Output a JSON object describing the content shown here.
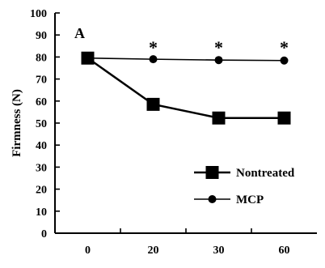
{
  "chart_data": {
    "type": "line",
    "panel_label": "A",
    "xlabel": "",
    "ylabel": "Firmness (N)",
    "categories": [
      "0",
      "20",
      "30",
      "60"
    ],
    "ylim": [
      0,
      100
    ],
    "yticks": [
      0,
      10,
      20,
      30,
      40,
      50,
      60,
      70,
      80,
      90,
      100
    ],
    "grid": false,
    "legend_position": "bottom-right",
    "series": [
      {
        "name": "Nontreated",
        "marker": "square",
        "values": [
          79.5,
          58.5,
          52.3,
          52.3
        ]
      },
      {
        "name": "MCP",
        "marker": "circle",
        "values": [
          79.5,
          79.0,
          78.6,
          78.4
        ]
      }
    ],
    "annotations": [
      {
        "text": "*",
        "category": "20",
        "y": 86
      },
      {
        "text": "*",
        "category": "30",
        "y": 86
      },
      {
        "text": "*",
        "category": "60",
        "y": 86
      }
    ]
  }
}
